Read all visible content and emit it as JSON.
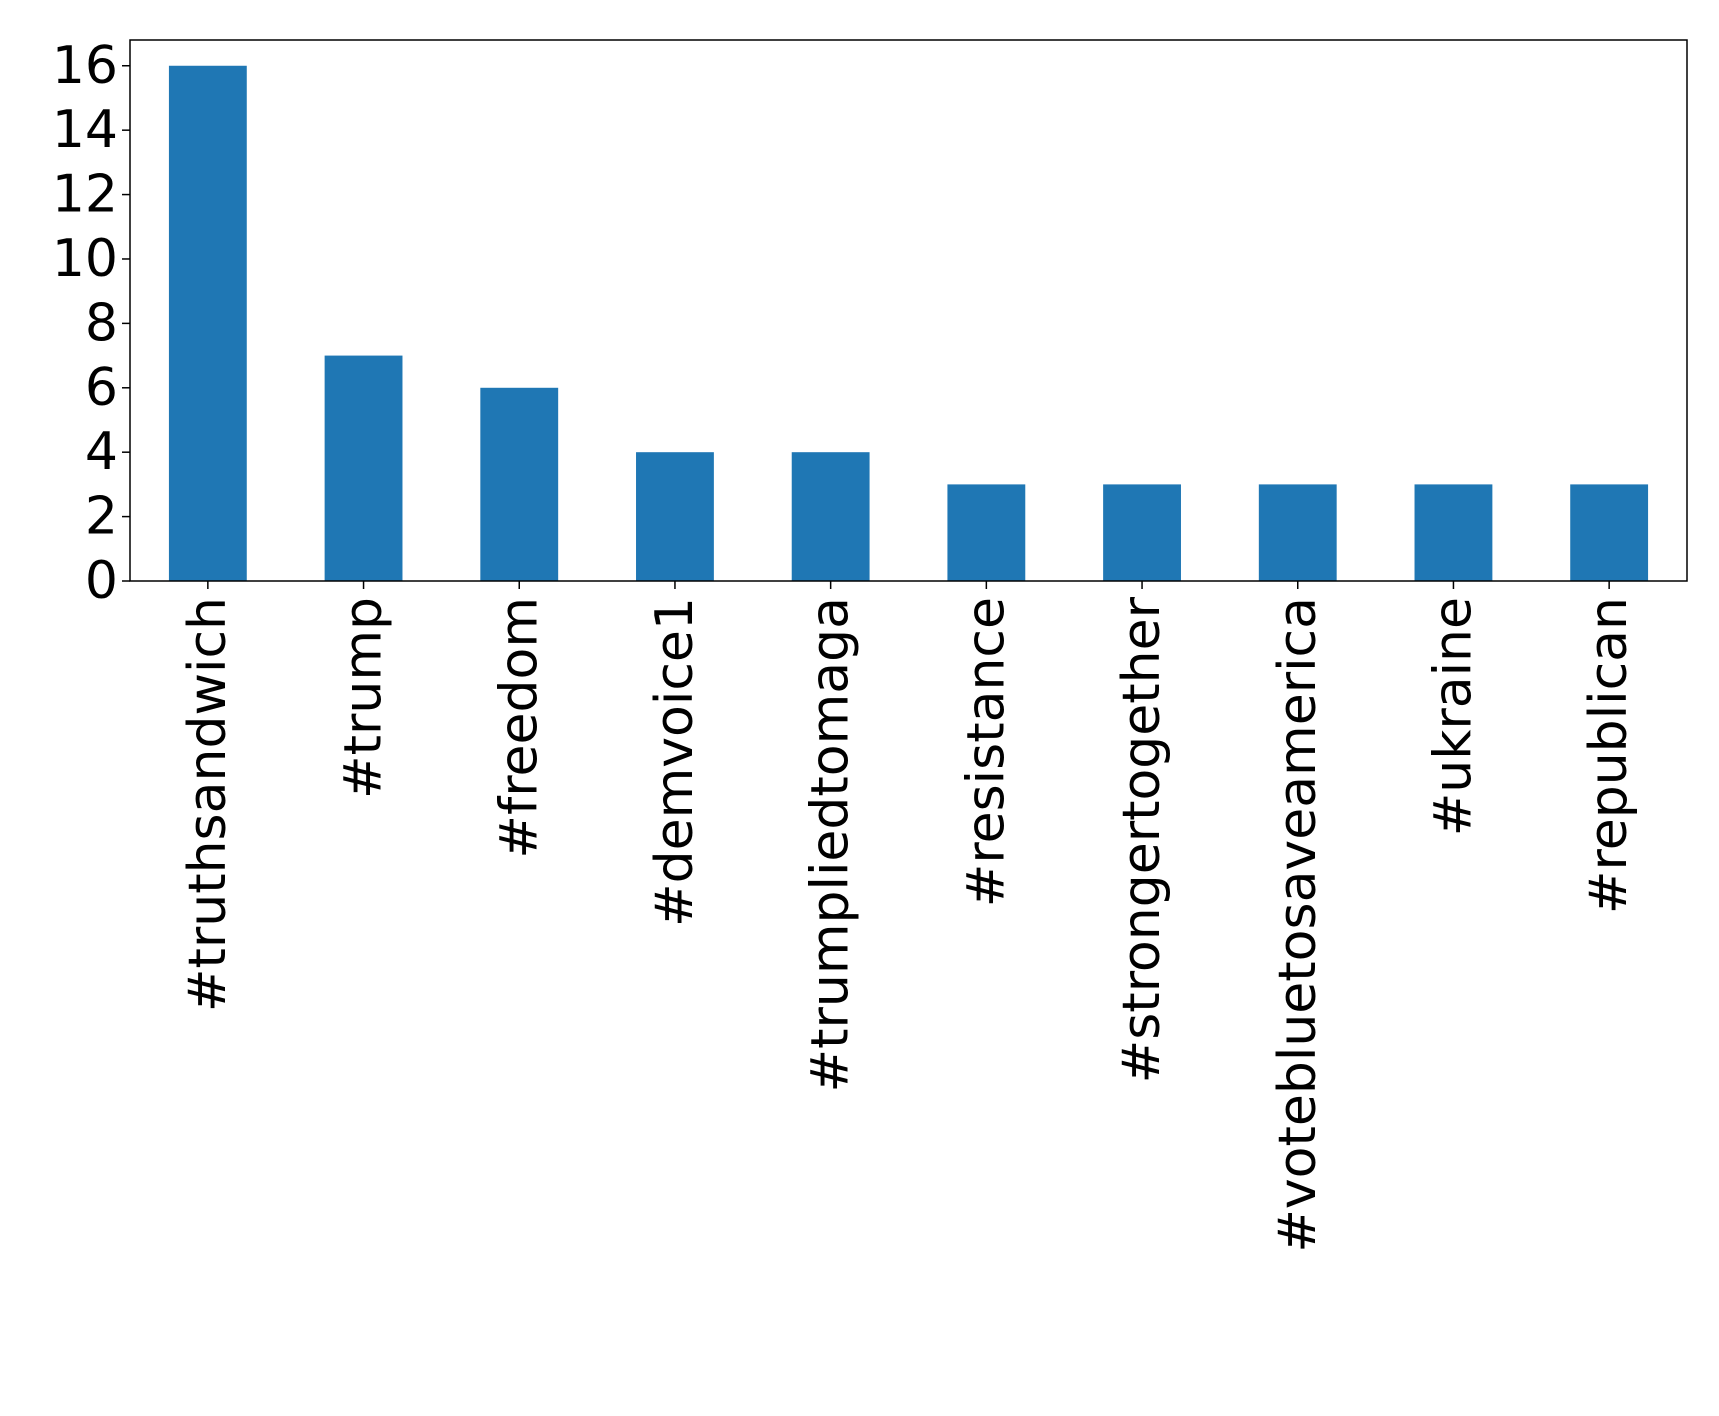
{
  "chart_data": {
    "type": "bar",
    "categories": [
      "#truthsandwich",
      "#trump",
      "#freedom",
      "#demvoice1",
      "#trumpliedtomaga",
      "#resistance",
      "#strongertogether",
      "#votebluetosaveamerica",
      "#ukraine",
      "#republican"
    ],
    "values": [
      16,
      7,
      6,
      4,
      4,
      3,
      3,
      3,
      3,
      3
    ],
    "color": "#1f77b4",
    "ylim": [
      0,
      16.8
    ],
    "yticks": [
      0,
      2,
      4,
      6,
      8,
      10,
      12,
      14,
      16
    ],
    "grid": false
  }
}
